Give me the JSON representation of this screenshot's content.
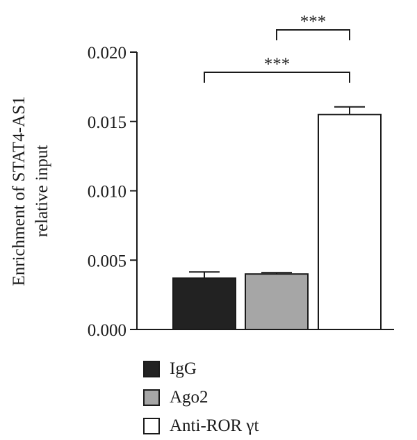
{
  "chart_data": {
    "type": "bar",
    "categories": [
      "IgG",
      "Ago2",
      "Anti-ROR γt"
    ],
    "values": [
      0.0037,
      0.004,
      0.0155
    ],
    "errors": [
      0.00045,
      0.0001,
      0.00055
    ],
    "colors": [
      "#222222",
      "#a6a6a6",
      "#ffffff"
    ],
    "ylabel_line1": "Enrichment of STAT4-AS1",
    "ylabel_line2": "relative input",
    "ylim": [
      0,
      0.02
    ],
    "yticks": [
      "0.000",
      "0.005",
      "0.010",
      "0.015",
      "0.020"
    ],
    "significance": [
      {
        "from": 1,
        "to": 2,
        "label": "***"
      },
      {
        "from": 0,
        "to": 2,
        "label": "***"
      }
    ],
    "legend": [
      {
        "label": "IgG",
        "color": "#222222"
      },
      {
        "label": "Ago2",
        "color": "#a6a6a6"
      },
      {
        "label": "Anti-ROR γt",
        "color": "#ffffff"
      }
    ]
  }
}
